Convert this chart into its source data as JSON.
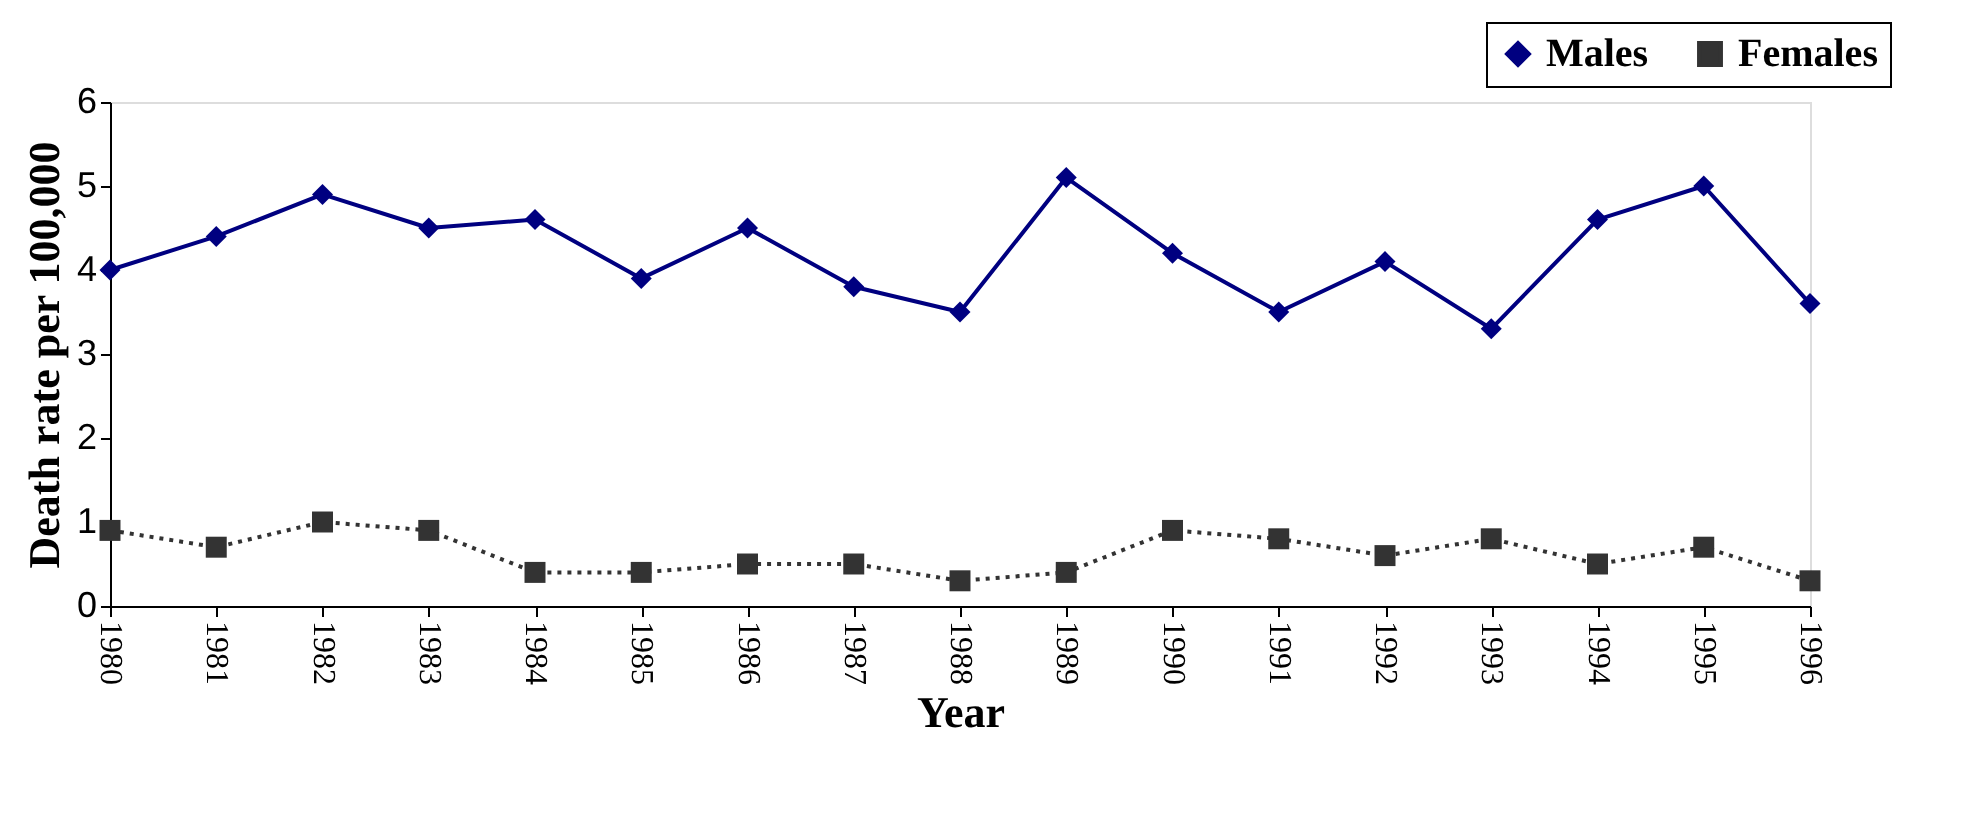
{
  "chart_data": {
    "type": "line",
    "xlabel": "Year",
    "ylabel": "Death rate per 100,000",
    "categories": [
      "1980",
      "1981",
      "1982",
      "1983",
      "1984",
      "1985",
      "1986",
      "1987",
      "1988",
      "1989",
      "1990",
      "1991",
      "1992",
      "1993",
      "1994",
      "1995",
      "1996"
    ],
    "series": [
      {
        "name": "Males",
        "color": "#000080",
        "marker": "diamond",
        "line_style": "solid",
        "values": [
          4.0,
          4.4,
          4.9,
          4.5,
          4.6,
          3.9,
          4.5,
          3.8,
          3.5,
          5.1,
          4.2,
          3.5,
          4.1,
          3.3,
          4.6,
          5.0,
          3.6
        ]
      },
      {
        "name": "Females",
        "color": "#333333",
        "marker": "square",
        "line_style": "dotted",
        "values": [
          0.9,
          0.7,
          1.0,
          0.9,
          0.4,
          0.4,
          0.5,
          0.5,
          0.3,
          0.4,
          0.9,
          0.8,
          0.6,
          0.8,
          0.5,
          0.7,
          0.3
        ]
      }
    ],
    "ylim": [
      0,
      6
    ],
    "yticks": [
      0,
      1,
      2,
      3,
      4,
      5,
      6
    ],
    "grid": false,
    "legend": "top right"
  }
}
